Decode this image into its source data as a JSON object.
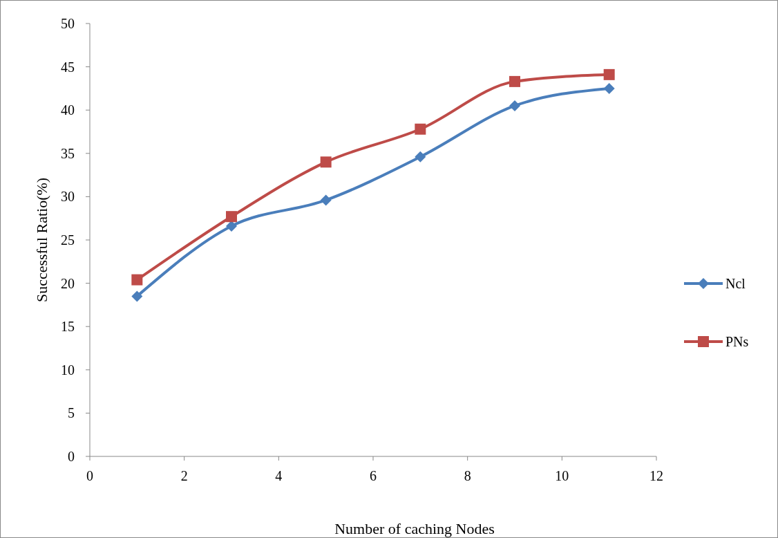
{
  "chart_data": {
    "type": "line",
    "xlabel": "Number of caching Nodes",
    "ylabel": "Successful Ratio(%)",
    "x": [
      1,
      3,
      5,
      7,
      9,
      11
    ],
    "series": [
      {
        "name": "Ncl",
        "color": "#4a7ebb",
        "values": [
          18.5,
          26.6,
          29.6,
          34.6,
          40.5,
          42.5
        ],
        "marker": "diamond"
      },
      {
        "name": "PNs",
        "color": "#be4b48",
        "values": [
          20.4,
          27.7,
          34.0,
          37.8,
          43.3,
          44.1
        ],
        "marker": "square"
      }
    ],
    "xlim": [
      0,
      12
    ],
    "xticks": [
      0,
      2,
      4,
      6,
      8,
      10,
      12
    ],
    "ylim": [
      0,
      50
    ],
    "yticks": [
      0,
      5,
      10,
      15,
      20,
      25,
      30,
      35,
      40,
      45,
      50
    ],
    "grid": false,
    "legend": "right",
    "line_style": "solid"
  }
}
